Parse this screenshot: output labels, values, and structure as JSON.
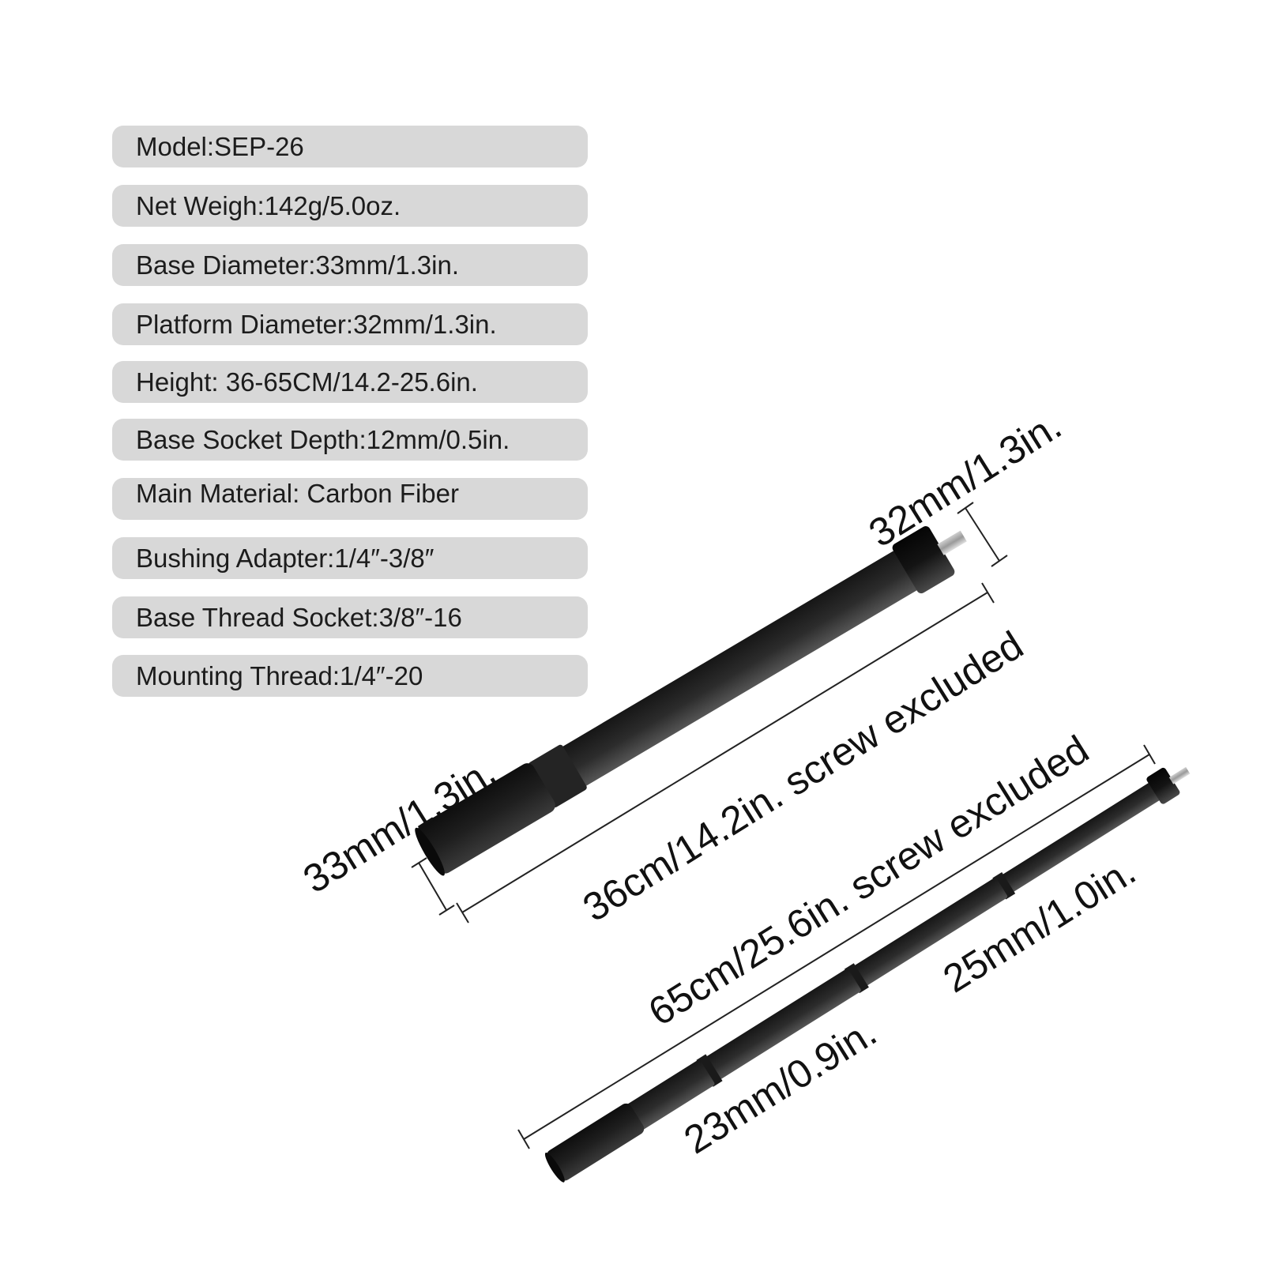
{
  "specs": [
    {
      "text": "Model:SEP-26"
    },
    {
      "text": "Net Weigh:142g/5.0oz."
    },
    {
      "text": "Base Diameter:33mm/1.3in."
    },
    {
      "text": "Platform Diameter:32mm/1.3in."
    },
    {
      "text": "Height: 36-65CM/14.2-25.6in."
    },
    {
      "text": "Base Socket Depth:12mm/0.5in."
    },
    {
      "text": "Main Material: Carbon Fiber"
    },
    {
      "text": "Bushing Adapter:1/4″-3/8″"
    },
    {
      "text": "Base Thread Socket:3/8″-16"
    },
    {
      "text": "Mounting Thread:1/4″-20"
    }
  ],
  "dimensions": {
    "platform_diameter": "32mm/1.3in.",
    "base_diameter": "33mm/1.3in.",
    "collapsed_length": "36cm/14.2in. screw excluded",
    "extended_length": "65cm/25.6in. screw excluded",
    "upper_section_diameter": "25mm/1.0in.",
    "lower_section_diameter": "23mm/0.9in."
  },
  "colors": {
    "pill_background": "#d8d8d8",
    "text": "#1c1c1c",
    "carbon_tube": "#2b2b2b",
    "grip": "#1e1e1e",
    "metal_cap": "#111111"
  }
}
